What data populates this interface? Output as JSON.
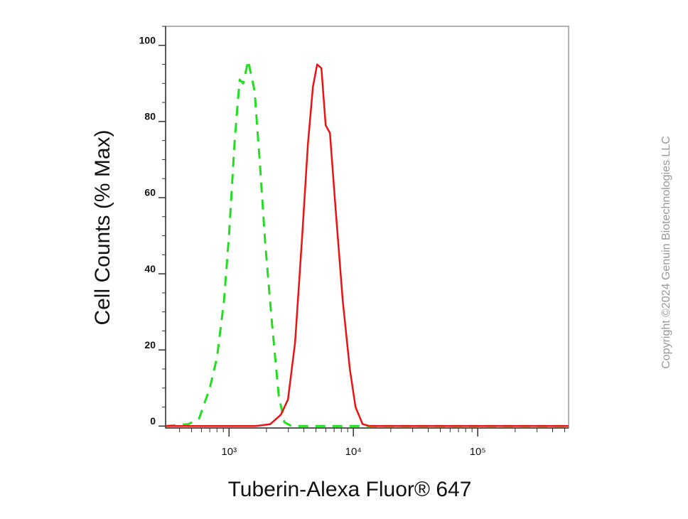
{
  "chart_data": {
    "type": "line",
    "xlabel": "Tuberin-Alexa Fluor® 647",
    "ylabel": "Cell Counts (% Max)",
    "annotation": "Copyright ©2024 Genuin Biotechnologies LLC",
    "xscale": "log",
    "xlim": [
      309,
      538000
    ],
    "ylim": [
      -0.5,
      105
    ],
    "xticks": [
      {
        "value": 1000,
        "label": "10³"
      },
      {
        "value": 10000,
        "label": "10⁴"
      },
      {
        "value": 100000,
        "label": "10⁵"
      }
    ],
    "yticks": [
      0,
      20,
      40,
      60,
      80,
      100
    ],
    "series": [
      {
        "color": "#22dd22",
        "dash": true,
        "x": [
          309,
          472,
          575,
          701,
          800,
          912,
          1000,
          1111,
          1218,
          1301,
          1426,
          1606,
          1762,
          1955,
          2202,
          2512,
          2790,
          3184,
          538000
        ],
        "values": [
          0,
          0.5,
          2,
          10,
          18,
          33,
          50,
          75,
          91,
          90,
          96,
          88,
          70,
          48,
          28,
          8,
          1,
          0,
          0
        ]
      },
      {
        "color": "#ee1111",
        "dash": false,
        "x": [
          309,
          1649,
          2144,
          2611,
          2978,
          3398,
          3878,
          4305,
          4722,
          5114,
          5534,
          5987,
          6478,
          7197,
          8208,
          9363,
          10400,
          11860,
          13520,
          538000
        ],
        "values": [
          0,
          0,
          0.5,
          3,
          7,
          22,
          50,
          74,
          89,
          95,
          94,
          79,
          77,
          57,
          33,
          15,
          5,
          0.5,
          0,
          0
        ]
      }
    ]
  }
}
